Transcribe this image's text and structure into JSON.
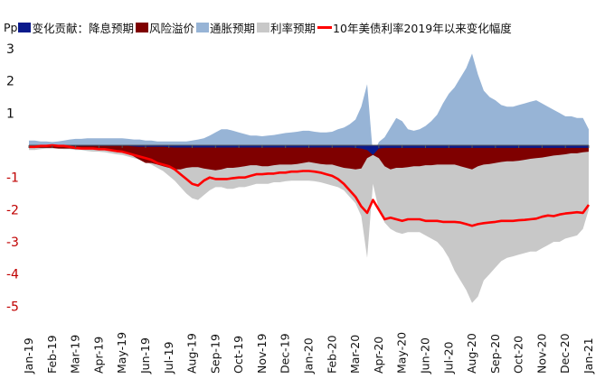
{
  "legend": {
    "unit": "Pp",
    "items": [
      {
        "label": "变化贡献：降息预期",
        "color": "#0a1a8c",
        "kind": "box"
      },
      {
        "label": "风险溢价",
        "color": "#7f0000",
        "kind": "box"
      },
      {
        "label": "通胀预期",
        "color": "#97b4d6",
        "kind": "box"
      },
      {
        "label": "利率预期",
        "color": "#c8c8c8",
        "kind": "box"
      },
      {
        "label": "10年美债利率2019年以来变化幅度",
        "color": "#ff0000",
        "kind": "line"
      }
    ]
  },
  "chart_data": {
    "type": "area",
    "title": "",
    "ylabel": "Pp",
    "ylim": [
      -5,
      3
    ],
    "yticks": [
      "3",
      "2",
      "1",
      "-1",
      "-2",
      "-3",
      "-4",
      "-5"
    ],
    "categories": [
      "Jan-19",
      "Feb-19",
      "Mar-19",
      "Apr-19",
      "May-19",
      "Jun-19",
      "Jul-19",
      "Aug-19",
      "Sep-19",
      "Oct-19",
      "Nov-19",
      "Dec-19",
      "Jan-20",
      "Feb-20",
      "Mar-20",
      "Apr-20",
      "May-20",
      "Jun-20",
      "Jul-20",
      "Aug-20",
      "Sep-20",
      "Oct-20",
      "Nov-20",
      "Dec-20",
      "Jan-21"
    ],
    "x": [
      0,
      0.25,
      0.5,
      0.75,
      1,
      1.25,
      1.5,
      1.75,
      2,
      2.25,
      2.5,
      2.75,
      3,
      3.25,
      3.5,
      3.75,
      4,
      4.25,
      4.5,
      4.75,
      5,
      5.25,
      5.5,
      5.75,
      6,
      6.25,
      6.5,
      6.75,
      7,
      7.25,
      7.5,
      7.75,
      8,
      8.25,
      8.5,
      8.75,
      9,
      9.25,
      9.5,
      9.75,
      10,
      10.25,
      10.5,
      10.75,
      11,
      11.25,
      11.5,
      11.75,
      12,
      12.25,
      12.5,
      12.75,
      13,
      13.25,
      13.5,
      13.75,
      14,
      14.25,
      14.5,
      14.75,
      15,
      15.25,
      15.5,
      15.75,
      16,
      16.25,
      16.5,
      16.75,
      17,
      17.25,
      17.5,
      17.75,
      18,
      18.25,
      18.5,
      18.75,
      19,
      19.25,
      19.5,
      19.75,
      20,
      20.25,
      20.5,
      20.75,
      21,
      21.25,
      21.5,
      21.75,
      22,
      22.25,
      22.5,
      22.75,
      23,
      23.25,
      23.5,
      23.75,
      24
    ],
    "series": [
      {
        "name": "降息预期",
        "color": "#0a1a8c",
        "values": [
          -0.02,
          -0.02,
          -0.02,
          -0.02,
          -0.02,
          -0.02,
          -0.02,
          -0.02,
          -0.02,
          -0.02,
          -0.02,
          -0.02,
          -0.02,
          -0.02,
          -0.02,
          -0.02,
          -0.02,
          -0.02,
          -0.04,
          -0.05,
          -0.05,
          -0.05,
          -0.05,
          -0.05,
          -0.06,
          -0.07,
          -0.07,
          -0.07,
          -0.07,
          -0.07,
          -0.07,
          -0.07,
          -0.07,
          -0.07,
          -0.07,
          -0.07,
          -0.07,
          -0.07,
          -0.07,
          -0.07,
          -0.07,
          -0.07,
          -0.07,
          -0.07,
          -0.07,
          -0.07,
          -0.07,
          -0.07,
          -0.07,
          -0.07,
          -0.07,
          -0.07,
          -0.07,
          -0.07,
          -0.07,
          -0.07,
          -0.08,
          -0.1,
          -0.15,
          -0.3,
          -0.1,
          -0.08,
          -0.08,
          -0.08,
          -0.08,
          -0.08,
          -0.08,
          -0.08,
          -0.08,
          -0.08,
          -0.08,
          -0.08,
          -0.08,
          -0.08,
          -0.08,
          -0.08,
          -0.08,
          -0.08,
          -0.08,
          -0.08,
          -0.08,
          -0.08,
          -0.08,
          -0.08,
          -0.08,
          -0.08,
          -0.08,
          -0.08,
          -0.08,
          -0.08,
          -0.08,
          -0.08,
          -0.08,
          -0.08,
          -0.08,
          -0.08,
          -0.08
        ]
      },
      {
        "name": "风险溢价",
        "color": "#7f0000",
        "values": [
          -0.08,
          -0.08,
          -0.08,
          -0.08,
          -0.08,
          -0.1,
          -0.1,
          -0.1,
          -0.12,
          -0.12,
          -0.12,
          -0.12,
          -0.15,
          -0.15,
          -0.15,
          -0.17,
          -0.2,
          -0.25,
          -0.35,
          -0.45,
          -0.55,
          -0.55,
          -0.6,
          -0.65,
          -0.7,
          -0.75,
          -0.75,
          -0.7,
          -0.68,
          -0.68,
          -0.72,
          -0.75,
          -0.78,
          -0.75,
          -0.7,
          -0.7,
          -0.68,
          -0.65,
          -0.62,
          -0.62,
          -0.65,
          -0.65,
          -0.62,
          -0.6,
          -0.6,
          -0.6,
          -0.58,
          -0.55,
          -0.52,
          -0.55,
          -0.58,
          -0.6,
          -0.6,
          -0.65,
          -0.7,
          -0.72,
          -0.75,
          -0.72,
          -0.4,
          -0.3,
          -0.4,
          -0.65,
          -0.75,
          -0.7,
          -0.7,
          -0.68,
          -0.65,
          -0.65,
          -0.62,
          -0.62,
          -0.6,
          -0.6,
          -0.6,
          -0.6,
          -0.65,
          -0.7,
          -0.75,
          -0.65,
          -0.6,
          -0.58,
          -0.55,
          -0.52,
          -0.5,
          -0.5,
          -0.48,
          -0.45,
          -0.42,
          -0.4,
          -0.38,
          -0.35,
          -0.32,
          -0.3,
          -0.28,
          -0.25,
          -0.25,
          -0.22,
          -0.2
        ]
      },
      {
        "name": "通胀预期",
        "color": "#97b4d6",
        "values": [
          0.15,
          0.15,
          0.12,
          0.12,
          0.1,
          0.12,
          0.15,
          0.18,
          0.2,
          0.2,
          0.22,
          0.22,
          0.22,
          0.22,
          0.22,
          0.22,
          0.22,
          0.2,
          0.18,
          0.18,
          0.15,
          0.15,
          0.12,
          0.12,
          0.12,
          0.12,
          0.12,
          0.12,
          0.15,
          0.18,
          0.22,
          0.3,
          0.4,
          0.5,
          0.5,
          0.45,
          0.4,
          0.35,
          0.3,
          0.3,
          0.28,
          0.3,
          0.32,
          0.35,
          0.38,
          0.4,
          0.42,
          0.45,
          0.45,
          0.42,
          0.4,
          0.4,
          0.42,
          0.5,
          0.55,
          0.65,
          0.8,
          1.2,
          1.9,
          -0.3,
          0.1,
          0.25,
          0.55,
          0.85,
          0.75,
          0.5,
          0.45,
          0.5,
          0.6,
          0.75,
          0.95,
          1.3,
          1.6,
          1.8,
          2.1,
          2.4,
          2.85,
          2.2,
          1.7,
          1.5,
          1.4,
          1.25,
          1.2,
          1.2,
          1.25,
          1.3,
          1.35,
          1.4,
          1.3,
          1.2,
          1.1,
          1.0,
          0.9,
          0.9,
          0.85,
          0.85,
          0.5
        ]
      },
      {
        "name": "利率预期",
        "color": "#c8c8c8",
        "values": [
          -0.15,
          -0.15,
          -0.12,
          -0.1,
          -0.1,
          -0.1,
          -0.12,
          -0.12,
          -0.15,
          -0.15,
          -0.18,
          -0.2,
          -0.2,
          -0.22,
          -0.25,
          -0.28,
          -0.3,
          -0.35,
          -0.4,
          -0.45,
          -0.5,
          -0.6,
          -0.7,
          -0.8,
          -0.95,
          -1.1,
          -1.3,
          -1.5,
          -1.65,
          -1.7,
          -1.55,
          -1.4,
          -1.3,
          -1.3,
          -1.35,
          -1.35,
          -1.3,
          -1.3,
          -1.25,
          -1.2,
          -1.2,
          -1.2,
          -1.15,
          -1.15,
          -1.12,
          -1.1,
          -1.1,
          -1.1,
          -1.1,
          -1.12,
          -1.15,
          -1.2,
          -1.25,
          -1.3,
          -1.4,
          -1.6,
          -1.8,
          -2.2,
          -3.5,
          -1.2,
          -2.0,
          -2.4,
          -2.6,
          -2.7,
          -2.75,
          -2.7,
          -2.7,
          -2.7,
          -2.8,
          -2.9,
          -3.0,
          -3.2,
          -3.5,
          -3.9,
          -4.2,
          -4.5,
          -4.9,
          -4.7,
          -4.2,
          -4.0,
          -3.8,
          -3.6,
          -3.5,
          -3.45,
          -3.4,
          -3.35,
          -3.3,
          -3.3,
          -3.2,
          -3.1,
          -3.0,
          -3.0,
          -2.9,
          -2.85,
          -2.8,
          -2.6,
          -2.0
        ]
      },
      {
        "name": "10年美债利率2019年以来变化幅度",
        "color": "#ff0000",
        "values": [
          -0.05,
          -0.05,
          -0.02,
          -0.02,
          0.0,
          -0.02,
          -0.02,
          -0.05,
          -0.08,
          -0.1,
          -0.1,
          -0.1,
          -0.12,
          -0.12,
          -0.15,
          -0.18,
          -0.2,
          -0.25,
          -0.3,
          -0.35,
          -0.4,
          -0.45,
          -0.55,
          -0.6,
          -0.65,
          -0.75,
          -0.9,
          -1.05,
          -1.2,
          -1.25,
          -1.1,
          -1.0,
          -1.05,
          -1.05,
          -1.05,
          -1.02,
          -1.0,
          -1.0,
          -0.95,
          -0.9,
          -0.9,
          -0.88,
          -0.88,
          -0.85,
          -0.85,
          -0.82,
          -0.82,
          -0.8,
          -0.8,
          -0.82,
          -0.85,
          -0.9,
          -0.95,
          -1.05,
          -1.2,
          -1.4,
          -1.6,
          -1.9,
          -2.1,
          -1.7,
          -2.0,
          -2.3,
          -2.25,
          -2.3,
          -2.35,
          -2.3,
          -2.3,
          -2.3,
          -2.35,
          -2.35,
          -2.35,
          -2.38,
          -2.38,
          -2.38,
          -2.4,
          -2.45,
          -2.5,
          -2.45,
          -2.42,
          -2.4,
          -2.38,
          -2.35,
          -2.35,
          -2.35,
          -2.33,
          -2.32,
          -2.3,
          -2.28,
          -2.22,
          -2.18,
          -2.2,
          -2.15,
          -2.12,
          -2.1,
          -2.08,
          -2.1,
          -1.85
        ]
      }
    ]
  }
}
